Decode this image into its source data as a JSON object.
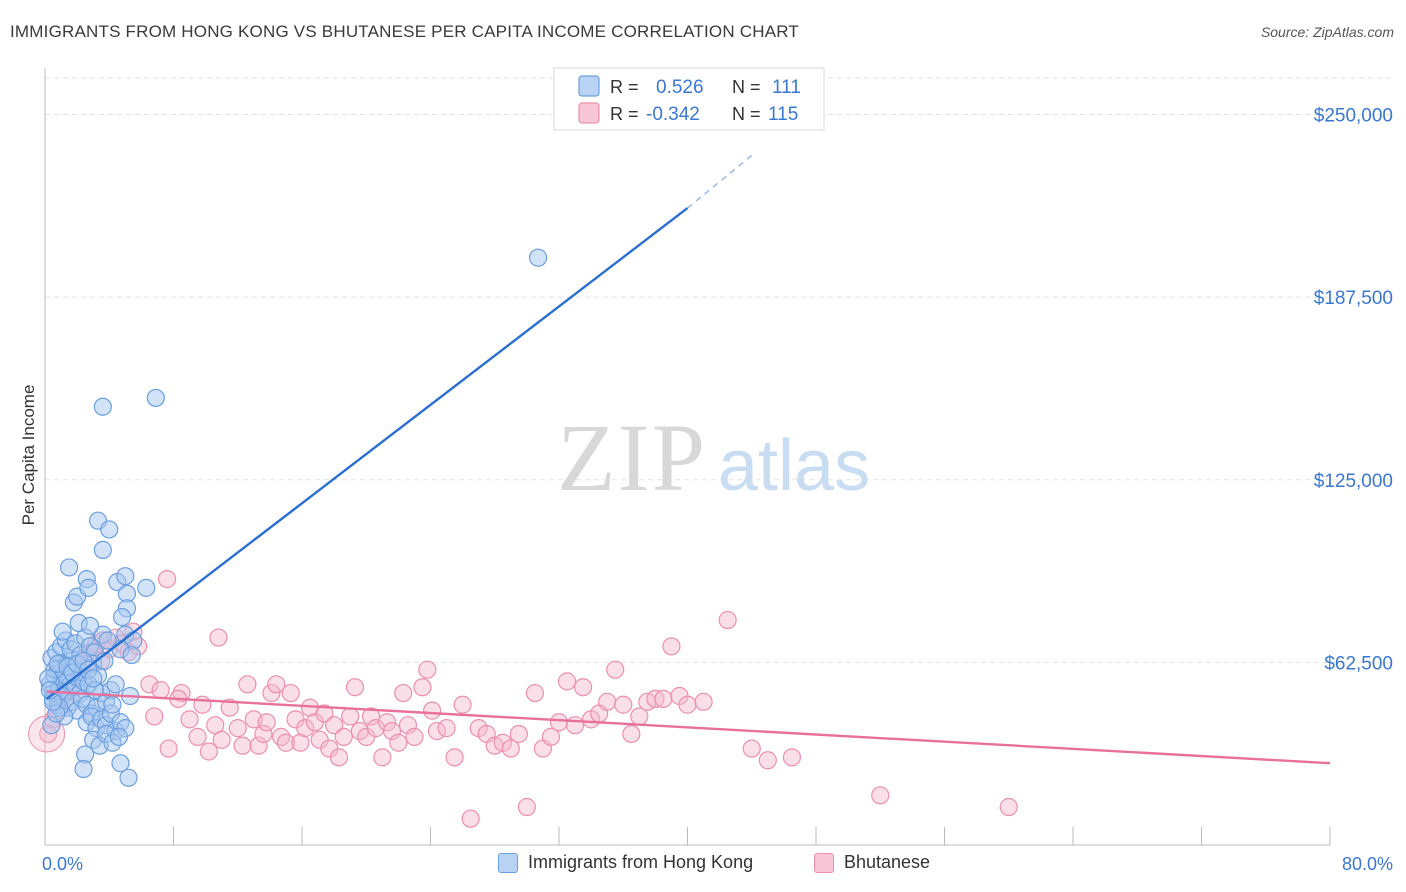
{
  "header": {
    "title": "IMMIGRANTS FROM HONG KONG VS BHUTANESE PER CAPITA INCOME CORRELATION CHART",
    "source": "Source: ZipAtlas.com"
  },
  "watermark": {
    "zip": "ZIP",
    "atlas": "atlas"
  },
  "colors": {
    "blue_fill": "#a8c8f0",
    "blue_stroke": "#6a9fe0",
    "blue_line": "#2a6fd0",
    "pink_fill": "#f5b8cc",
    "pink_stroke": "#ec8fae",
    "pink_line": "#e8709a",
    "axis_label": "#3a78d0",
    "grid": "#e2e2e2"
  },
  "legend_top": {
    "rows": [
      {
        "r_label": "R =",
        "r_value": "0.526",
        "n_label": "N =",
        "n_value": "111"
      },
      {
        "r_label": "R =",
        "r_value": "-0.342",
        "n_label": "N =",
        "n_value": "115"
      }
    ]
  },
  "chart_data": {
    "type": "scatter",
    "xlabel": "",
    "ylabel": "Per Capita Income",
    "xlim": [
      0,
      80
    ],
    "ylim": [
      0,
      262500
    ],
    "x_tick_labels": [
      "0.0%",
      "80.0%"
    ],
    "y_ticks": [
      62500,
      125000,
      187500,
      250000
    ],
    "y_tick_labels": [
      "$62,500",
      "$125,000",
      "$187,500",
      "$250,000"
    ],
    "grid": true,
    "legend_position": "bottom",
    "series": [
      {
        "name": "Immigrants from Hong Kong",
        "r": 0.526,
        "n": 111,
        "trend": {
          "x0": 0.1,
          "y0": 50000,
          "x1": 40,
          "y1": 218000,
          "dash_x1": 44,
          "dash_y1": 236000
        },
        "points": [
          [
            0.3,
            55000
          ],
          [
            0.5,
            52000
          ],
          [
            0.6,
            58000
          ],
          [
            0.8,
            60000
          ],
          [
            0.9,
            54000
          ],
          [
            1.0,
            62000
          ],
          [
            1.1,
            57000
          ],
          [
            1.2,
            53000
          ],
          [
            1.3,
            59000
          ],
          [
            1.4,
            56000
          ],
          [
            1.5,
            61000
          ],
          [
            1.6,
            55000
          ],
          [
            1.7,
            63000
          ],
          [
            1.8,
            58000
          ],
          [
            1.9,
            54000
          ],
          [
            2.0,
            60000
          ],
          [
            2.1,
            57000
          ],
          [
            2.2,
            52000
          ],
          [
            2.3,
            59000
          ],
          [
            2.4,
            56000
          ],
          [
            0.4,
            64000
          ],
          [
            0.7,
            66000
          ],
          [
            1.0,
            68000
          ],
          [
            1.3,
            70000
          ],
          [
            1.6,
            67000
          ],
          [
            1.9,
            69000
          ],
          [
            2.2,
            65000
          ],
          [
            2.5,
            71000
          ],
          [
            2.8,
            68000
          ],
          [
            3.1,
            66000
          ],
          [
            0.5,
            50000
          ],
          [
            0.8,
            48000
          ],
          [
            1.1,
            51000
          ],
          [
            1.4,
            47000
          ],
          [
            1.7,
            49000
          ],
          [
            2.0,
            46000
          ],
          [
            2.3,
            50000
          ],
          [
            2.6,
            48000
          ],
          [
            2.9,
            45000
          ],
          [
            3.2,
            47000
          ],
          [
            3.5,
            52000
          ],
          [
            3.8,
            49000
          ],
          [
            4.1,
            53000
          ],
          [
            4.4,
            55000
          ],
          [
            2.6,
            42000
          ],
          [
            2.9,
            44000
          ],
          [
            3.2,
            40000
          ],
          [
            3.5,
            43000
          ],
          [
            3.8,
            41000
          ],
          [
            4.1,
            45000
          ],
          [
            4.4,
            39000
          ],
          [
            4.7,
            42000
          ],
          [
            5.0,
            40000
          ],
          [
            3.0,
            36000
          ],
          [
            3.4,
            34000
          ],
          [
            3.8,
            38000
          ],
          [
            4.2,
            35000
          ],
          [
            4.6,
            37000
          ],
          [
            2.5,
            31000
          ],
          [
            2.4,
            26000
          ],
          [
            4.7,
            28000
          ],
          [
            5.2,
            23000
          ],
          [
            1.5,
            95000
          ],
          [
            1.8,
            83000
          ],
          [
            2.0,
            85000
          ],
          [
            2.6,
            91000
          ],
          [
            2.7,
            88000
          ],
          [
            3.3,
            111000
          ],
          [
            4.0,
            108000
          ],
          [
            3.6,
            101000
          ],
          [
            4.5,
            90000
          ],
          [
            5.0,
            92000
          ],
          [
            5.1,
            86000
          ],
          [
            6.3,
            88000
          ],
          [
            5.1,
            81000
          ],
          [
            4.8,
            78000
          ],
          [
            5.0,
            72000
          ],
          [
            5.5,
            70000
          ],
          [
            4.7,
            67000
          ],
          [
            5.4,
            65000
          ],
          [
            3.6,
            72000
          ],
          [
            3.9,
            70000
          ],
          [
            2.1,
            76000
          ],
          [
            2.8,
            75000
          ],
          [
            3.0,
            62000
          ],
          [
            3.3,
            58000
          ],
          [
            3.7,
            63000
          ],
          [
            1.2,
            44000
          ],
          [
            0.9,
            47000
          ],
          [
            0.4,
            41000
          ],
          [
            0.7,
            45000
          ],
          [
            0.5,
            49000
          ],
          [
            3.6,
            150000
          ],
          [
            6.9,
            153000
          ],
          [
            30.7,
            201000
          ],
          [
            1.3,
            58000
          ],
          [
            2.7,
            55000
          ],
          [
            3.1,
            53000
          ],
          [
            4.2,
            48000
          ],
          [
            5.3,
            51000
          ],
          [
            0.6,
            60000
          ],
          [
            0.8,
            62000
          ],
          [
            1.4,
            61000
          ],
          [
            1.7,
            59000
          ],
          [
            2.0,
            62000
          ],
          [
            2.4,
            63000
          ],
          [
            2.7,
            60000
          ],
          [
            3.0,
            57000
          ],
          [
            0.2,
            57000
          ],
          [
            0.3,
            53000
          ],
          [
            1.1,
            73000
          ]
        ]
      },
      {
        "name": "Bhutanese",
        "r": -0.342,
        "n": 115,
        "trend": {
          "x0": 0.1,
          "y0": 52500,
          "x1": 80,
          "y1": 28000
        },
        "points": [
          [
            0.2,
            38000
          ],
          [
            0.5,
            43000
          ],
          [
            0.8,
            46000
          ],
          [
            1.0,
            50000
          ],
          [
            1.3,
            52000
          ],
          [
            1.6,
            55000
          ],
          [
            2.0,
            58000
          ],
          [
            2.4,
            62000
          ],
          [
            2.8,
            66000
          ],
          [
            3.2,
            69000
          ],
          [
            3.6,
            70000
          ],
          [
            4.0,
            67000
          ],
          [
            4.4,
            71000
          ],
          [
            4.8,
            69000
          ],
          [
            5.2,
            66000
          ],
          [
            5.5,
            73000
          ],
          [
            5.8,
            68000
          ],
          [
            1.8,
            58000
          ],
          [
            2.2,
            62000
          ],
          [
            2.6,
            64000
          ],
          [
            3.0,
            66000
          ],
          [
            3.5,
            63000
          ],
          [
            6.5,
            55000
          ],
          [
            7.2,
            53000
          ],
          [
            6.8,
            44000
          ],
          [
            7.7,
            33000
          ],
          [
            7.6,
            91000
          ],
          [
            8.5,
            52000
          ],
          [
            8.3,
            50000
          ],
          [
            9.0,
            43000
          ],
          [
            9.5,
            37000
          ],
          [
            9.8,
            48000
          ],
          [
            10.2,
            32000
          ],
          [
            10.6,
            41000
          ],
          [
            11.0,
            36000
          ],
          [
            10.8,
            71000
          ],
          [
            11.5,
            47000
          ],
          [
            12.0,
            40000
          ],
          [
            12.3,
            34000
          ],
          [
            12.6,
            55000
          ],
          [
            13.0,
            43000
          ],
          [
            13.3,
            34000
          ],
          [
            13.6,
            38000
          ],
          [
            13.8,
            42000
          ],
          [
            14.1,
            52000
          ],
          [
            14.4,
            55000
          ],
          [
            14.7,
            37000
          ],
          [
            15.0,
            35000
          ],
          [
            15.3,
            52000
          ],
          [
            15.6,
            43000
          ],
          [
            15.9,
            35000
          ],
          [
            16.2,
            40000
          ],
          [
            16.5,
            47000
          ],
          [
            16.8,
            42000
          ],
          [
            17.1,
            36000
          ],
          [
            17.4,
            45000
          ],
          [
            17.7,
            33000
          ],
          [
            18.0,
            41000
          ],
          [
            18.3,
            30000
          ],
          [
            18.6,
            37000
          ],
          [
            19.0,
            44000
          ],
          [
            19.3,
            54000
          ],
          [
            19.6,
            39000
          ],
          [
            20.0,
            37000
          ],
          [
            20.3,
            44000
          ],
          [
            20.6,
            40000
          ],
          [
            21.0,
            30000
          ],
          [
            21.3,
            42000
          ],
          [
            21.6,
            39000
          ],
          [
            22.0,
            35000
          ],
          [
            22.3,
            52000
          ],
          [
            22.6,
            41000
          ],
          [
            23.0,
            37000
          ],
          [
            23.5,
            54000
          ],
          [
            23.8,
            60000
          ],
          [
            24.1,
            46000
          ],
          [
            24.4,
            39000
          ],
          [
            25.0,
            40000
          ],
          [
            25.5,
            30000
          ],
          [
            26.0,
            48000
          ],
          [
            26.5,
            9000
          ],
          [
            27.0,
            40000
          ],
          [
            27.5,
            38000
          ],
          [
            28.0,
            34000
          ],
          [
            28.5,
            35000
          ],
          [
            29.0,
            33000
          ],
          [
            29.5,
            38000
          ],
          [
            30.0,
            13000
          ],
          [
            30.5,
            52000
          ],
          [
            31.0,
            33000
          ],
          [
            31.5,
            37000
          ],
          [
            32.0,
            42000
          ],
          [
            32.5,
            56000
          ],
          [
            33.0,
            41000
          ],
          [
            33.5,
            54000
          ],
          [
            34.0,
            43000
          ],
          [
            34.5,
            45000
          ],
          [
            35.0,
            49000
          ],
          [
            35.5,
            60000
          ],
          [
            36.0,
            48000
          ],
          [
            36.5,
            38000
          ],
          [
            37.0,
            44000
          ],
          [
            37.5,
            49000
          ],
          [
            38.0,
            50000
          ],
          [
            38.5,
            50000
          ],
          [
            39.0,
            68000
          ],
          [
            39.5,
            51000
          ],
          [
            40.0,
            48000
          ],
          [
            41.0,
            49000
          ],
          [
            42.5,
            77000
          ],
          [
            44.0,
            33000
          ],
          [
            45.0,
            29000
          ],
          [
            46.5,
            30000
          ],
          [
            52.0,
            17000
          ],
          [
            60.0,
            13000
          ]
        ]
      }
    ]
  },
  "legend_bottom": {
    "items": [
      {
        "label": "Immigrants from Hong Kong"
      },
      {
        "label": "Bhutanese"
      }
    ]
  }
}
